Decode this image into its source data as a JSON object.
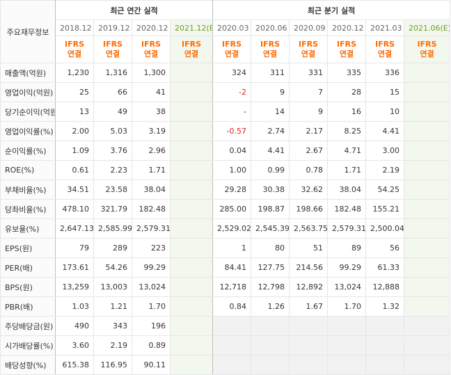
{
  "header": {
    "corner_label": "주요재무정보",
    "annual_group_title": "최근 연간 실적",
    "quarter_group_title": "최근 분기 실적",
    "annual_periods": [
      "2018.12",
      "2019.12",
      "2020.12",
      "2021.12(E)"
    ],
    "quarter_periods": [
      "2020.03",
      "2020.06",
      "2020.09",
      "2020.12",
      "2021.03",
      "2021.06(E)"
    ],
    "basis_line1": "IFRS",
    "basis_line2": "연결"
  },
  "colors": {
    "ifrs_text": "#ff6a00",
    "estimate_bg": "#f3f8ee",
    "estimate_text": "#6f9c2b",
    "negative_value": "#e02020"
  },
  "rows": [
    {
      "label": "매출액(억원)",
      "annual": [
        "1,230",
        "1,316",
        "1,300",
        ""
      ],
      "quarter": [
        "324",
        "311",
        "331",
        "335",
        "336",
        ""
      ]
    },
    {
      "label": "영업이익(억원)",
      "annual": [
        "25",
        "66",
        "41",
        ""
      ],
      "quarter": [
        "-2",
        "9",
        "7",
        "28",
        "15",
        ""
      ]
    },
    {
      "label": "당기순이익(억원)",
      "annual": [
        "13",
        "49",
        "38",
        ""
      ],
      "quarter": [
        "-",
        "14",
        "9",
        "16",
        "10",
        ""
      ]
    },
    {
      "label": "영업이익률(%)",
      "annual": [
        "2.00",
        "5.03",
        "3.19",
        ""
      ],
      "quarter": [
        "-0.57",
        "2.74",
        "2.17",
        "8.25",
        "4.41",
        ""
      ]
    },
    {
      "label": "순이익률(%)",
      "annual": [
        "1.09",
        "3.76",
        "2.96",
        ""
      ],
      "quarter": [
        "0.04",
        "4.41",
        "2.67",
        "4.71",
        "3.00",
        ""
      ]
    },
    {
      "label": "ROE(%)",
      "annual": [
        "0.61",
        "2.23",
        "1.71",
        ""
      ],
      "quarter": [
        "1.00",
        "0.99",
        "0.78",
        "1.71",
        "2.19",
        ""
      ]
    },
    {
      "label": "부채비율(%)",
      "annual": [
        "34.51",
        "23.58",
        "38.04",
        ""
      ],
      "quarter": [
        "29.28",
        "30.38",
        "32.62",
        "38.04",
        "54.25",
        ""
      ]
    },
    {
      "label": "당좌비율(%)",
      "annual": [
        "478.10",
        "321.79",
        "182.48",
        ""
      ],
      "quarter": [
        "285.00",
        "198.87",
        "198.66",
        "182.48",
        "155.21",
        ""
      ]
    },
    {
      "label": "유보율(%)",
      "annual": [
        "2,647.13",
        "2,585.99",
        "2,579.31",
        ""
      ],
      "quarter": [
        "2,529.02",
        "2,545.39",
        "2,563.75",
        "2,579.31",
        "2,500.04",
        ""
      ]
    },
    {
      "label": "EPS(원)",
      "annual": [
        "79",
        "289",
        "223",
        ""
      ],
      "quarter": [
        "1",
        "80",
        "51",
        "89",
        "56",
        ""
      ]
    },
    {
      "label": "PER(배)",
      "annual": [
        "173.61",
        "54.26",
        "99.29",
        ""
      ],
      "quarter": [
        "84.41",
        "127.75",
        "214.56",
        "99.29",
        "61.33",
        ""
      ]
    },
    {
      "label": "BPS(원)",
      "annual": [
        "13,259",
        "13,003",
        "13,024",
        ""
      ],
      "quarter": [
        "12,718",
        "12,798",
        "12,892",
        "13,024",
        "12,888",
        ""
      ]
    },
    {
      "label": "PBR(배)",
      "annual": [
        "1.03",
        "1.21",
        "1.70",
        ""
      ],
      "quarter": [
        "0.84",
        "1.26",
        "1.67",
        "1.70",
        "1.32",
        ""
      ]
    },
    {
      "label": "주당배당금(원)",
      "annual": [
        "490",
        "343",
        "196",
        ""
      ],
      "quarter": [
        "",
        "",
        "",
        "",
        "",
        ""
      ]
    },
    {
      "label": "시가배당률(%)",
      "annual": [
        "3.60",
        "2.19",
        "0.89",
        ""
      ],
      "quarter": [
        "",
        "",
        "",
        "",
        "",
        ""
      ]
    },
    {
      "label": "배당성향(%)",
      "annual": [
        "615.38",
        "116.95",
        "90.11",
        ""
      ],
      "quarter": [
        "",
        "",
        "",
        "",
        "",
        ""
      ]
    }
  ]
}
